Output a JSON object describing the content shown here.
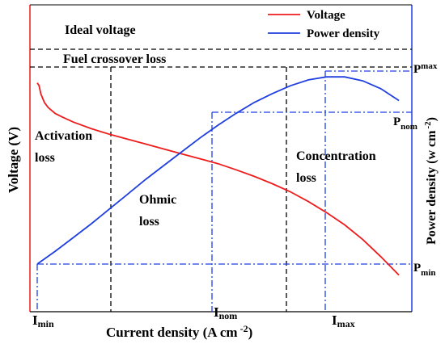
{
  "chart_data": {
    "type": "line",
    "xlabel": "Current density (A cm",
    "xlabel_sup": "-2",
    "xlabel_close": ")",
    "ylabel_left": "Voltage (V)",
    "ylabel_right": "Power density (w cm",
    "ylabel_right_sup": "-2",
    "ylabel_right_close": ")",
    "legend": {
      "placement": "top-right",
      "entries": [
        "Voltage",
        "Power density"
      ]
    },
    "colors": {
      "voltage": "#ee1c1c",
      "power": "#1f3fe0",
      "guides": "#1f3fe0",
      "regions": "#000000"
    },
    "annotations": {
      "ideal": "Ideal voltage",
      "crossover": "Fuel crossover loss",
      "activation": [
        "Activation",
        "loss"
      ],
      "ohmic": [
        "Ohmic",
        "loss"
      ],
      "concentration": [
        "Concentration",
        "loss"
      ]
    },
    "x_markers": [
      {
        "base": "I",
        "sub": "min"
      },
      {
        "base": "I",
        "sub": "nom"
      },
      {
        "base": "I",
        "sub": "max"
      }
    ],
    "y_markers": [
      {
        "base": "P",
        "sub": "max"
      },
      {
        "base": "P",
        "sub": "nom"
      },
      {
        "base": "P",
        "sub": "min"
      }
    ],
    "series": [
      {
        "name": "Voltage",
        "x": [
          0,
          0.5,
          1,
          2,
          3,
          5,
          7,
          10,
          15,
          20,
          25,
          30,
          35,
          40,
          45,
          50,
          55,
          60,
          65,
          70,
          75,
          80,
          85,
          90,
          95,
          100
        ],
        "y": [
          0.935,
          0.925,
          0.89,
          0.855,
          0.835,
          0.81,
          0.795,
          0.775,
          0.748,
          0.725,
          0.705,
          0.685,
          0.665,
          0.645,
          0.625,
          0.605,
          0.58,
          0.553,
          0.523,
          0.49,
          0.45,
          0.405,
          0.355,
          0.295,
          0.225,
          0.15
        ]
      },
      {
        "name": "Power density",
        "x": [
          0,
          5,
          10,
          15,
          20,
          25,
          30,
          35,
          40,
          45,
          50,
          55,
          60,
          65,
          70,
          75,
          80,
          85,
          90,
          95,
          100
        ],
        "y": [
          0,
          0.065,
          0.135,
          0.205,
          0.28,
          0.355,
          0.43,
          0.5,
          0.57,
          0.64,
          0.705,
          0.765,
          0.82,
          0.865,
          0.905,
          0.935,
          0.95,
          0.95,
          0.93,
          0.89,
          0.83
        ]
      }
    ]
  }
}
